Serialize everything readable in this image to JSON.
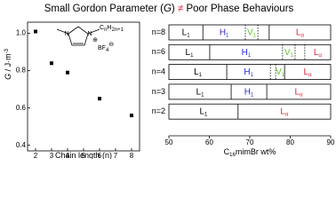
{
  "title_parts": [
    "Small Gordon Parameter (",
    "G",
    ")",
    "≠",
    "Poor Phase Behaviours"
  ],
  "structure": {
    "n1": "N",
    "n2": "N",
    "charge": "⊕",
    "chain": [
      "C",
      "n",
      "H",
      "2n+1"
    ],
    "anion": [
      "BF",
      "4",
      "⊖"
    ]
  },
  "chart_data": [
    {
      "type": "scatter",
      "x_label": "Chain length (n)",
      "y_label_parts": [
        "G",
        " / J·m",
        "-3"
      ],
      "x": [
        2,
        3,
        4,
        6,
        8
      ],
      "values": [
        1.01,
        0.84,
        0.79,
        0.65,
        0.56
      ],
      "color": "#000000",
      "xlim": [
        1.5,
        8.5
      ],
      "xticks": [
        2,
        3,
        4,
        5,
        6,
        7,
        8
      ],
      "ylim": [
        0.37,
        1.06
      ],
      "yticks": [
        {
          "value": 0.4,
          "label": "0.4"
        },
        {
          "value": 0.6,
          "label": "0.6"
        },
        {
          "value": 0.8,
          "label": "0.8"
        },
        {
          "value": 1.0,
          "label": "1.0"
        }
      ]
    },
    {
      "type": "phase",
      "x_label_parts": [
        "C",
        "16",
        "mimBr wt%"
      ],
      "xlim": [
        50,
        90
      ],
      "xticks": [
        50,
        60,
        70,
        80,
        90
      ],
      "phase_colors": {
        "L": "#000000",
        "H": "#2a2ad6",
        "V": "#5cc72e",
        "Lα": "#e5203a"
      },
      "rows": [
        {
          "name": "n=8",
          "boundaries": [
            58.4,
            68.9,
            72.0,
            74.8
          ],
          "boundary_styles": [
            "solid",
            "dashed",
            "dashed",
            "solid"
          ],
          "phases": [
            {
              "symbol": "L",
              "sub": "1"
            },
            {
              "symbol": "H",
              "sub": "1"
            },
            {
              "symbol": "V",
              "sub": "1"
            },
            null,
            {
              "symbol": "L",
              "sub": "α"
            }
          ]
        },
        {
          "name": "n=6",
          "boundaries": [
            60.1,
            78.1,
            81.2,
            83.6
          ],
          "boundary_styles": [
            "solid",
            "dashed",
            "dashed",
            "dashed"
          ],
          "phases": [
            {
              "symbol": "L",
              "sub": "1"
            },
            {
              "symbol": "H",
              "sub": "1"
            },
            {
              "symbol": "V",
              "sub": "1"
            },
            null,
            {
              "symbol": "L",
              "sub": "α"
            }
          ]
        },
        {
          "name": "n=4",
          "boundaries": [
            64.3,
            75.1,
            76.4,
            78.6
          ],
          "boundary_styles": [
            "solid",
            "dashed",
            "dashed",
            "solid"
          ],
          "phases": [
            {
              "symbol": "L",
              "sub": "1"
            },
            {
              "symbol": "H",
              "sub": "1"
            },
            null,
            {
              "symbol": "V",
              "sub": "1"
            },
            {
              "symbol": "L",
              "sub": "α"
            }
          ]
        },
        {
          "name": "n=3",
          "boundaries": [
            65.4,
            74.2
          ],
          "boundary_styles": [
            "solid",
            "solid"
          ],
          "phases": [
            {
              "symbol": "L",
              "sub": "1"
            },
            {
              "symbol": "H",
              "sub": "1"
            },
            {
              "symbol": "L",
              "sub": "α"
            }
          ]
        },
        {
          "name": "n=2",
          "boundaries": [
            67.1
          ],
          "boundary_styles": [
            "solid"
          ],
          "phases": [
            {
              "symbol": "L",
              "sub": "1"
            },
            {
              "symbol": "L",
              "sub": "α"
            }
          ]
        }
      ]
    }
  ]
}
